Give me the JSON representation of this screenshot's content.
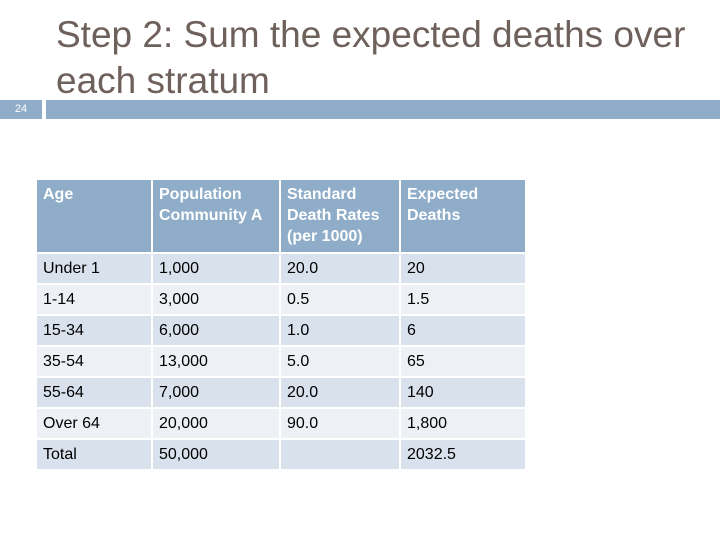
{
  "slide": {
    "number": "24",
    "title": "Step 2: Sum the expected deaths over each stratum"
  },
  "table": {
    "headers": [
      "Age",
      "Population Community A",
      "Standard Death Rates (per 1000)",
      "Expected Deaths"
    ],
    "rows": [
      [
        "Under 1",
        "1,000",
        "20.0",
        "20"
      ],
      [
        "1-14",
        "3,000",
        "0.5",
        "1.5"
      ],
      [
        "15-34",
        "6,000",
        "1.0",
        "6"
      ],
      [
        "35-54",
        "13,000",
        "5.0",
        "65"
      ],
      [
        "55-64",
        "7,000",
        "20.0",
        "140"
      ],
      [
        "Over 64",
        "20,000",
        "90.0",
        "1,800"
      ],
      [
        "Total",
        "50,000",
        "",
        "2032.5"
      ]
    ]
  },
  "colors": {
    "accent": "#8fadc8",
    "row_dark": "#d8e1ec",
    "row_light": "#edf1f6",
    "title_text": "#6e605a"
  }
}
